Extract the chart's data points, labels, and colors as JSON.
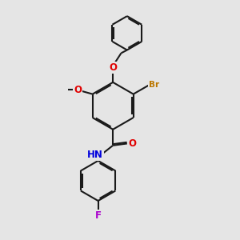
{
  "bg_color": "#e5e5e5",
  "bond_color": "#1a1a1a",
  "bond_width": 1.5,
  "dbo": 0.055,
  "atom_colors": {
    "O": "#e00000",
    "N": "#0000dd",
    "Br": "#bb7700",
    "F": "#aa00cc",
    "C": "#1a1a1a"
  },
  "fs": 8.5,
  "fs_br": 7.5
}
